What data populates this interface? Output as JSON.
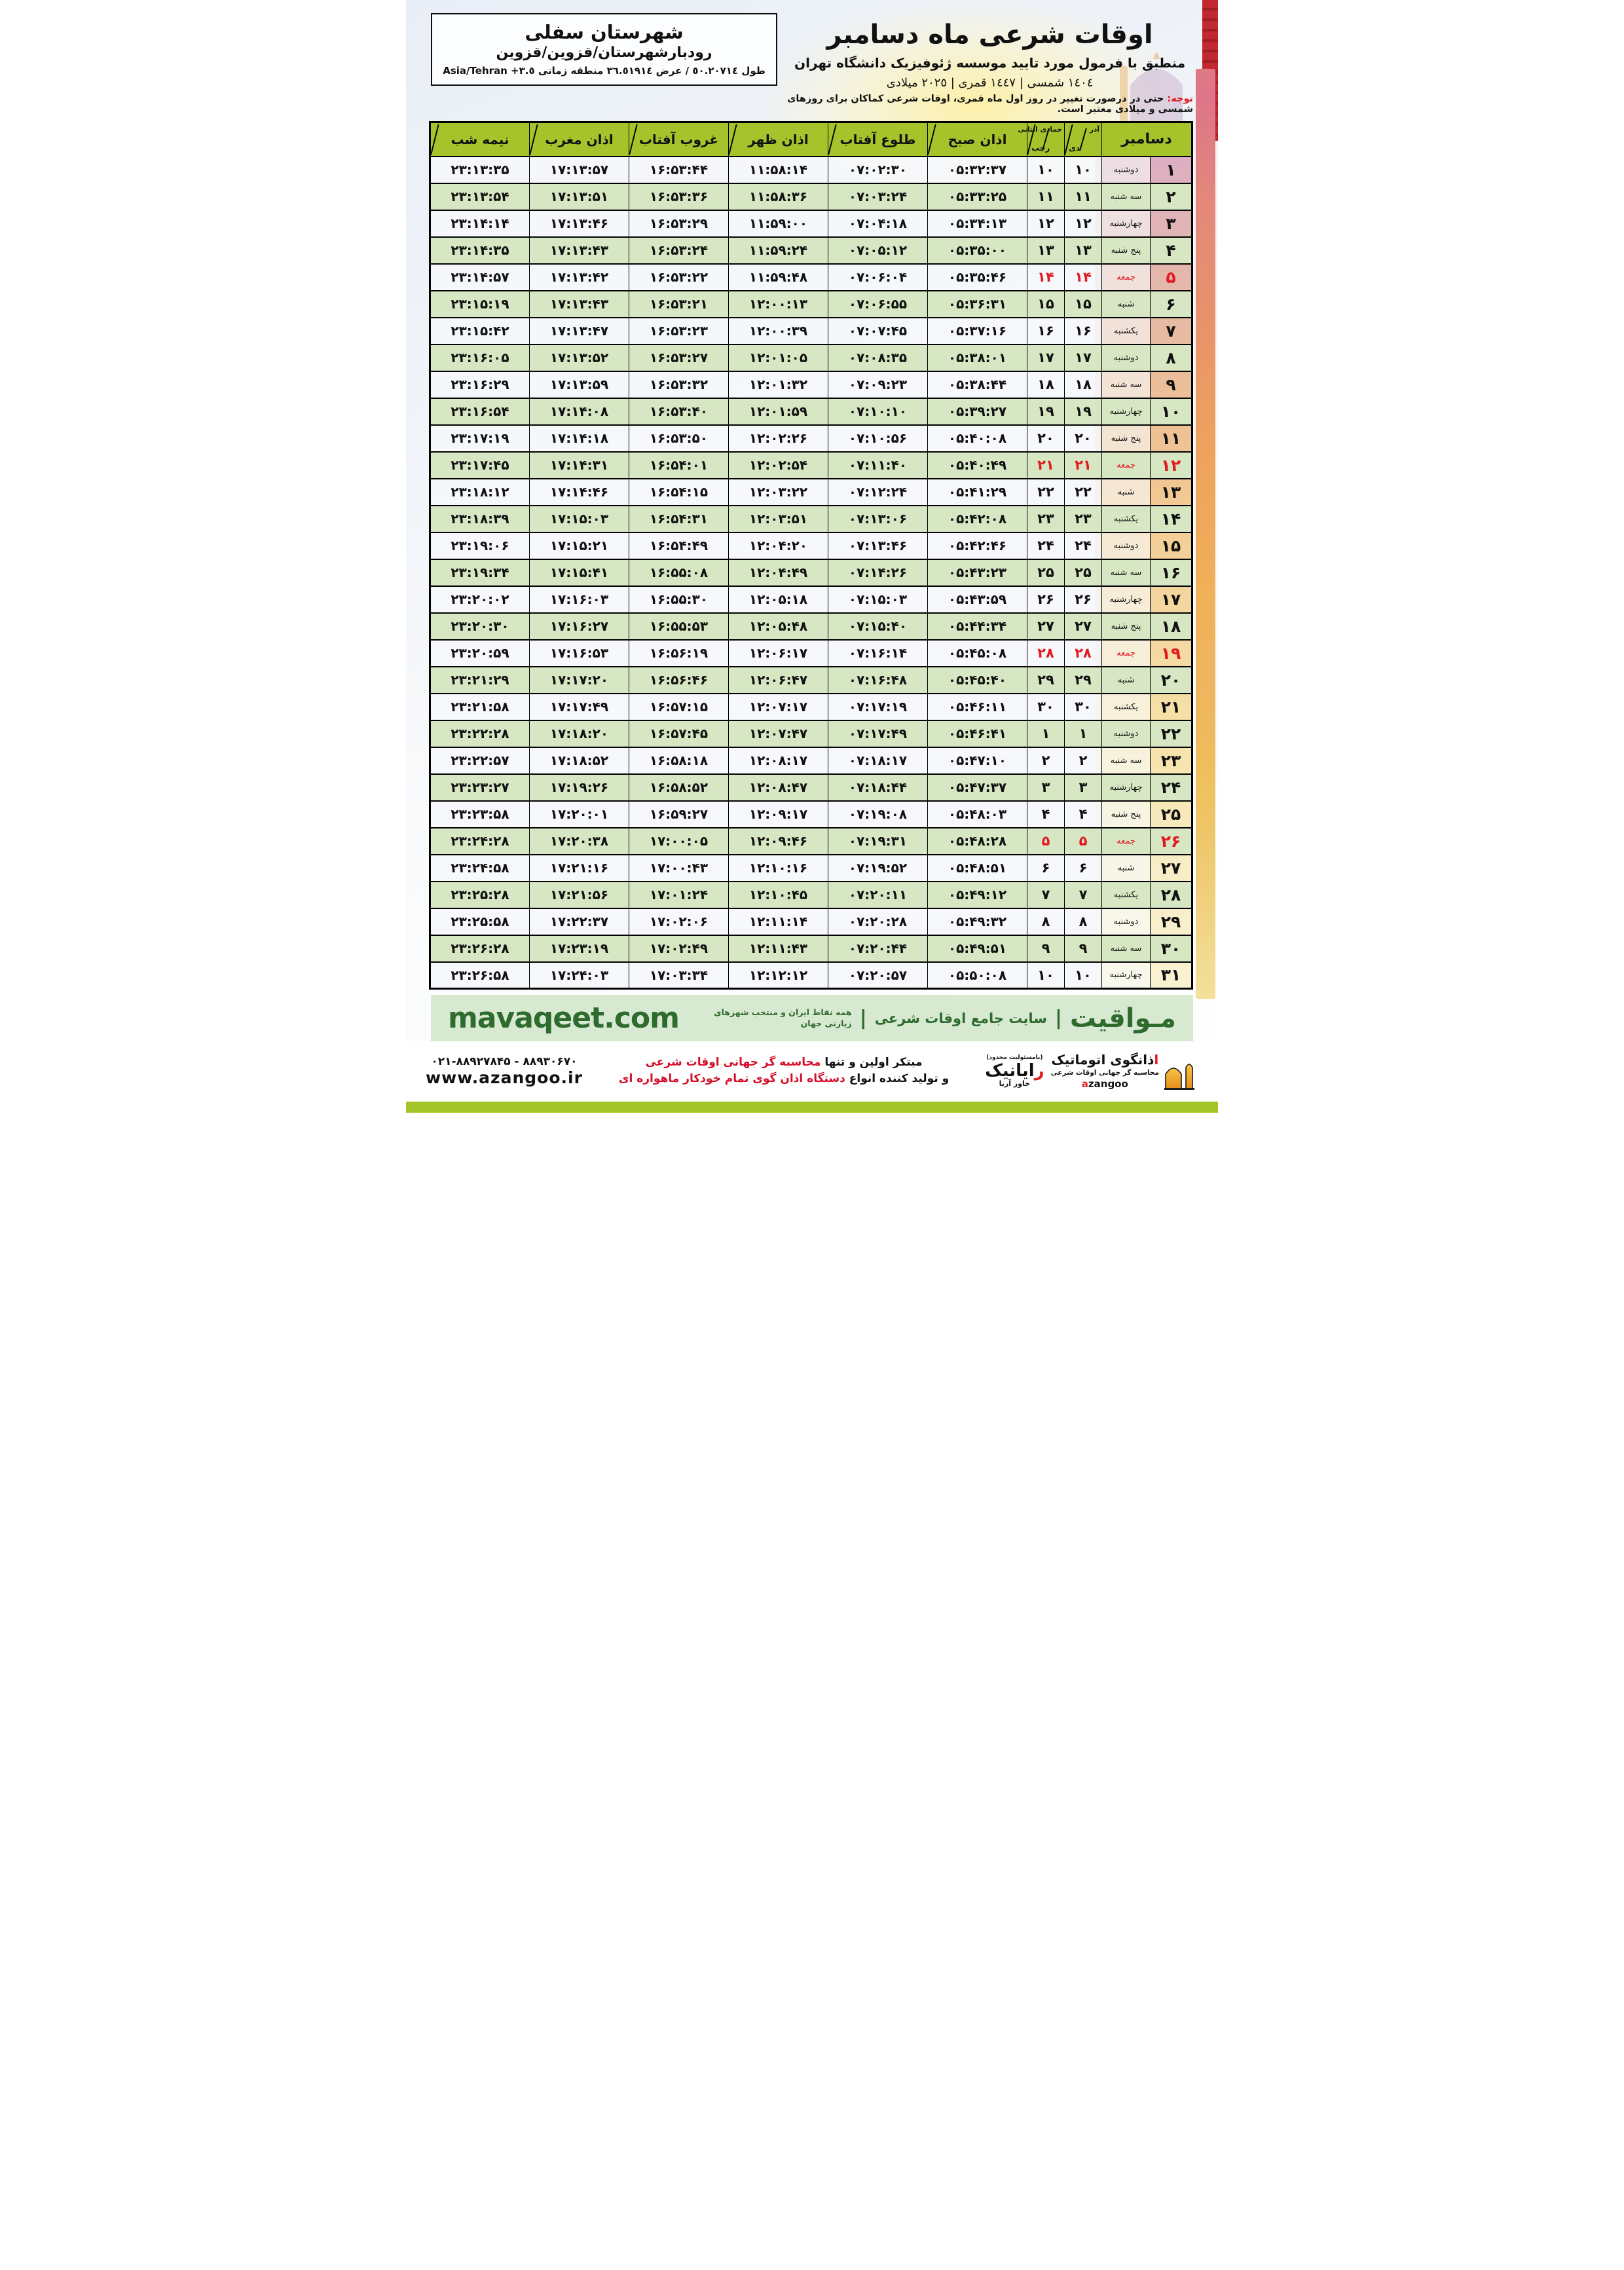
{
  "colors": {
    "header_green": "#a7c32b",
    "row_green": "#d8e7c3",
    "red": "#e01b22",
    "band_bg": "#d8e9d1",
    "band_green": "#2e6b2e",
    "bar_green": "#a4c62a",
    "orange": "#f09d2e"
  },
  "header": {
    "title": "اوقات شرعی ماه دسامبر",
    "subtitle": "منطبق با فرمول مورد تایید موسسه ژئوفیزیک دانشگاه تهران",
    "calendar_line": "١٤٠٤ شمسی | ١٤٤٧ قمری | ٢٠٢٥ میلادی"
  },
  "location_box": {
    "line1": "شهرستان سفلی",
    "line2": "رودبارشهرستان/قزوین/قزوین",
    "coords": "طول ٥٠.٢٠٧١٤ / عرض ٣٦.٥١٩١٤ منطقه زمانی",
    "timezone": "Asia/Tehran +٣.٥"
  },
  "notice": {
    "label": "توجه:",
    "text": "حتی در درصورت تغییر در روز اول ماه قمری، اوقات شرعی کماکان برای روزهای شمسی و میلادی معتبر است."
  },
  "table": {
    "headers": {
      "december": "دسامبر",
      "solar_top": "آذر",
      "solar_bottom": "دی",
      "lunar_top": "جمادی الثانی",
      "lunar_bottom": "رجب",
      "fajr": "اذان صبح",
      "sunrise": "طلوع آفتاب",
      "dhuhr": "اذان ظهر",
      "sunset": "غروب آفتاب",
      "maghrib": "اذان مغرب",
      "midnight": "نیمه شب"
    },
    "rows": [
      {
        "day": "۱",
        "weekday": "دوشنبه",
        "solar": "۱۰",
        "lunar": "۱۰",
        "fajr": "۰۵:۳۲:۳۷",
        "sunrise": "۰۷:۰۲:۳۰",
        "dhuhr": "۱۱:۵۸:۱۴",
        "sunset": "۱۶:۵۳:۴۴",
        "maghrib": "۱۷:۱۳:۵۷",
        "midnight": "۲۳:۱۳:۳۵",
        "friday": false
      },
      {
        "day": "۲",
        "weekday": "سه شنبه",
        "solar": "۱۱",
        "lunar": "۱۱",
        "fajr": "۰۵:۳۳:۲۵",
        "sunrise": "۰۷:۰۳:۲۴",
        "dhuhr": "۱۱:۵۸:۳۶",
        "sunset": "۱۶:۵۳:۳۶",
        "maghrib": "۱۷:۱۳:۵۱",
        "midnight": "۲۳:۱۳:۵۴",
        "friday": false
      },
      {
        "day": "۳",
        "weekday": "چهارشنبه",
        "solar": "۱۲",
        "lunar": "۱۲",
        "fajr": "۰۵:۳۴:۱۳",
        "sunrise": "۰۷:۰۴:۱۸",
        "dhuhr": "۱۱:۵۹:۰۰",
        "sunset": "۱۶:۵۳:۲۹",
        "maghrib": "۱۷:۱۳:۴۶",
        "midnight": "۲۳:۱۴:۱۴",
        "friday": false
      },
      {
        "day": "۴",
        "weekday": "پنج شنبه",
        "solar": "۱۳",
        "lunar": "۱۳",
        "fajr": "۰۵:۳۵:۰۰",
        "sunrise": "۰۷:۰۵:۱۲",
        "dhuhr": "۱۱:۵۹:۲۴",
        "sunset": "۱۶:۵۳:۲۴",
        "maghrib": "۱۷:۱۳:۴۳",
        "midnight": "۲۳:۱۴:۳۵",
        "friday": false
      },
      {
        "day": "۵",
        "weekday": "جمعه",
        "solar": "۱۴",
        "lunar": "۱۴",
        "fajr": "۰۵:۳۵:۴۶",
        "sunrise": "۰۷:۰۶:۰۴",
        "dhuhr": "۱۱:۵۹:۴۸",
        "sunset": "۱۶:۵۳:۲۲",
        "maghrib": "۱۷:۱۳:۴۲",
        "midnight": "۲۳:۱۴:۵۷",
        "friday": true
      },
      {
        "day": "۶",
        "weekday": "شنبه",
        "solar": "۱۵",
        "lunar": "۱۵",
        "fajr": "۰۵:۳۶:۳۱",
        "sunrise": "۰۷:۰۶:۵۵",
        "dhuhr": "۱۲:۰۰:۱۳",
        "sunset": "۱۶:۵۳:۲۱",
        "maghrib": "۱۷:۱۳:۴۳",
        "midnight": "۲۳:۱۵:۱۹",
        "friday": false
      },
      {
        "day": "۷",
        "weekday": "یکشنبه",
        "solar": "۱۶",
        "lunar": "۱۶",
        "fajr": "۰۵:۳۷:۱۶",
        "sunrise": "۰۷:۰۷:۴۵",
        "dhuhr": "۱۲:۰۰:۳۹",
        "sunset": "۱۶:۵۳:۲۳",
        "maghrib": "۱۷:۱۳:۴۷",
        "midnight": "۲۳:۱۵:۴۲",
        "friday": false
      },
      {
        "day": "۸",
        "weekday": "دوشنبه",
        "solar": "۱۷",
        "lunar": "۱۷",
        "fajr": "۰۵:۳۸:۰۱",
        "sunrise": "۰۷:۰۸:۳۵",
        "dhuhr": "۱۲:۰۱:۰۵",
        "sunset": "۱۶:۵۳:۲۷",
        "maghrib": "۱۷:۱۳:۵۲",
        "midnight": "۲۳:۱۶:۰۵",
        "friday": false
      },
      {
        "day": "۹",
        "weekday": "سه شنبه",
        "solar": "۱۸",
        "lunar": "۱۸",
        "fajr": "۰۵:۳۸:۴۴",
        "sunrise": "۰۷:۰۹:۲۳",
        "dhuhr": "۱۲:۰۱:۳۲",
        "sunset": "۱۶:۵۳:۳۲",
        "maghrib": "۱۷:۱۳:۵۹",
        "midnight": "۲۳:۱۶:۲۹",
        "friday": false
      },
      {
        "day": "۱۰",
        "weekday": "چهارشنبه",
        "solar": "۱۹",
        "lunar": "۱۹",
        "fajr": "۰۵:۳۹:۲۷",
        "sunrise": "۰۷:۱۰:۱۰",
        "dhuhr": "۱۲:۰۱:۵۹",
        "sunset": "۱۶:۵۳:۴۰",
        "maghrib": "۱۷:۱۴:۰۸",
        "midnight": "۲۳:۱۶:۵۴",
        "friday": false
      },
      {
        "day": "۱۱",
        "weekday": "پنج شنبه",
        "solar": "۲۰",
        "lunar": "۲۰",
        "fajr": "۰۵:۴۰:۰۸",
        "sunrise": "۰۷:۱۰:۵۶",
        "dhuhr": "۱۲:۰۲:۲۶",
        "sunset": "۱۶:۵۳:۵۰",
        "maghrib": "۱۷:۱۴:۱۸",
        "midnight": "۲۳:۱۷:۱۹",
        "friday": false
      },
      {
        "day": "۱۲",
        "weekday": "جمعه",
        "solar": "۲۱",
        "lunar": "۲۱",
        "fajr": "۰۵:۴۰:۴۹",
        "sunrise": "۰۷:۱۱:۴۰",
        "dhuhr": "۱۲:۰۲:۵۴",
        "sunset": "۱۶:۵۴:۰۱",
        "maghrib": "۱۷:۱۴:۳۱",
        "midnight": "۲۳:۱۷:۴۵",
        "friday": true
      },
      {
        "day": "۱۳",
        "weekday": "شنبه",
        "solar": "۲۲",
        "lunar": "۲۲",
        "fajr": "۰۵:۴۱:۲۹",
        "sunrise": "۰۷:۱۲:۲۴",
        "dhuhr": "۱۲:۰۳:۲۲",
        "sunset": "۱۶:۵۴:۱۵",
        "maghrib": "۱۷:۱۴:۴۶",
        "midnight": "۲۳:۱۸:۱۲",
        "friday": false
      },
      {
        "day": "۱۴",
        "weekday": "یکشنبه",
        "solar": "۲۳",
        "lunar": "۲۳",
        "fajr": "۰۵:۴۲:۰۸",
        "sunrise": "۰۷:۱۳:۰۶",
        "dhuhr": "۱۲:۰۳:۵۱",
        "sunset": "۱۶:۵۴:۳۱",
        "maghrib": "۱۷:۱۵:۰۳",
        "midnight": "۲۳:۱۸:۳۹",
        "friday": false
      },
      {
        "day": "۱۵",
        "weekday": "دوشنبه",
        "solar": "۲۴",
        "lunar": "۲۴",
        "fajr": "۰۵:۴۲:۴۶",
        "sunrise": "۰۷:۱۳:۴۶",
        "dhuhr": "۱۲:۰۴:۲۰",
        "sunset": "۱۶:۵۴:۴۹",
        "maghrib": "۱۷:۱۵:۲۱",
        "midnight": "۲۳:۱۹:۰۶",
        "friday": false
      },
      {
        "day": "۱۶",
        "weekday": "سه شنبه",
        "solar": "۲۵",
        "lunar": "۲۵",
        "fajr": "۰۵:۴۳:۲۳",
        "sunrise": "۰۷:۱۴:۲۶",
        "dhuhr": "۱۲:۰۴:۴۹",
        "sunset": "۱۶:۵۵:۰۸",
        "maghrib": "۱۷:۱۵:۴۱",
        "midnight": "۲۳:۱۹:۳۴",
        "friday": false
      },
      {
        "day": "۱۷",
        "weekday": "چهارشنبه",
        "solar": "۲۶",
        "lunar": "۲۶",
        "fajr": "۰۵:۴۳:۵۹",
        "sunrise": "۰۷:۱۵:۰۳",
        "dhuhr": "۱۲:۰۵:۱۸",
        "sunset": "۱۶:۵۵:۳۰",
        "maghrib": "۱۷:۱۶:۰۳",
        "midnight": "۲۳:۲۰:۰۲",
        "friday": false
      },
      {
        "day": "۱۸",
        "weekday": "پنج شنبه",
        "solar": "۲۷",
        "lunar": "۲۷",
        "fajr": "۰۵:۴۴:۳۴",
        "sunrise": "۰۷:۱۵:۴۰",
        "dhuhr": "۱۲:۰۵:۴۸",
        "sunset": "۱۶:۵۵:۵۳",
        "maghrib": "۱۷:۱۶:۲۷",
        "midnight": "۲۳:۲۰:۳۰",
        "friday": false
      },
      {
        "day": "۱۹",
        "weekday": "جمعه",
        "solar": "۲۸",
        "lunar": "۲۸",
        "fajr": "۰۵:۴۵:۰۸",
        "sunrise": "۰۷:۱۶:۱۴",
        "dhuhr": "۱۲:۰۶:۱۷",
        "sunset": "۱۶:۵۶:۱۹",
        "maghrib": "۱۷:۱۶:۵۳",
        "midnight": "۲۳:۲۰:۵۹",
        "friday": true
      },
      {
        "day": "۲۰",
        "weekday": "شنبه",
        "solar": "۲۹",
        "lunar": "۲۹",
        "fajr": "۰۵:۴۵:۴۰",
        "sunrise": "۰۷:۱۶:۴۸",
        "dhuhr": "۱۲:۰۶:۴۷",
        "sunset": "۱۶:۵۶:۴۶",
        "maghrib": "۱۷:۱۷:۲۰",
        "midnight": "۲۳:۲۱:۲۹",
        "friday": false
      },
      {
        "day": "۲۱",
        "weekday": "یکشنبه",
        "solar": "۳۰",
        "lunar": "۳۰",
        "fajr": "۰۵:۴۶:۱۱",
        "sunrise": "۰۷:۱۷:۱۹",
        "dhuhr": "۱۲:۰۷:۱۷",
        "sunset": "۱۶:۵۷:۱۵",
        "maghrib": "۱۷:۱۷:۴۹",
        "midnight": "۲۳:۲۱:۵۸",
        "friday": false
      },
      {
        "day": "۲۲",
        "weekday": "دوشنبه",
        "solar": "۱",
        "lunar": "۱",
        "fajr": "۰۵:۴۶:۴۱",
        "sunrise": "۰۷:۱۷:۴۹",
        "dhuhr": "۱۲:۰۷:۴۷",
        "sunset": "۱۶:۵۷:۴۵",
        "maghrib": "۱۷:۱۸:۲۰",
        "midnight": "۲۳:۲۲:۲۸",
        "friday": false
      },
      {
        "day": "۲۳",
        "weekday": "سه شنبه",
        "solar": "۲",
        "lunar": "۲",
        "fajr": "۰۵:۴۷:۱۰",
        "sunrise": "۰۷:۱۸:۱۷",
        "dhuhr": "۱۲:۰۸:۱۷",
        "sunset": "۱۶:۵۸:۱۸",
        "maghrib": "۱۷:۱۸:۵۲",
        "midnight": "۲۳:۲۲:۵۷",
        "friday": false
      },
      {
        "day": "۲۴",
        "weekday": "چهارشنبه",
        "solar": "۳",
        "lunar": "۳",
        "fajr": "۰۵:۴۷:۳۷",
        "sunrise": "۰۷:۱۸:۴۴",
        "dhuhr": "۱۲:۰۸:۴۷",
        "sunset": "۱۶:۵۸:۵۲",
        "maghrib": "۱۷:۱۹:۲۶",
        "midnight": "۲۳:۲۳:۲۷",
        "friday": false
      },
      {
        "day": "۲۵",
        "weekday": "پنج شنبه",
        "solar": "۴",
        "lunar": "۴",
        "fajr": "۰۵:۴۸:۰۳",
        "sunrise": "۰۷:۱۹:۰۸",
        "dhuhr": "۱۲:۰۹:۱۷",
        "sunset": "۱۶:۵۹:۲۷",
        "maghrib": "۱۷:۲۰:۰۱",
        "midnight": "۲۳:۲۳:۵۸",
        "friday": false
      },
      {
        "day": "۲۶",
        "weekday": "جمعه",
        "solar": "۵",
        "lunar": "۵",
        "fajr": "۰۵:۴۸:۲۸",
        "sunrise": "۰۷:۱۹:۳۱",
        "dhuhr": "۱۲:۰۹:۴۶",
        "sunset": "۱۷:۰۰:۰۵",
        "maghrib": "۱۷:۲۰:۳۸",
        "midnight": "۲۳:۲۴:۲۸",
        "friday": true
      },
      {
        "day": "۲۷",
        "weekday": "شنبه",
        "solar": "۶",
        "lunar": "۶",
        "fajr": "۰۵:۴۸:۵۱",
        "sunrise": "۰۷:۱۹:۵۲",
        "dhuhr": "۱۲:۱۰:۱۶",
        "sunset": "۱۷:۰۰:۴۳",
        "maghrib": "۱۷:۲۱:۱۶",
        "midnight": "۲۳:۲۴:۵۸",
        "friday": false
      },
      {
        "day": "۲۸",
        "weekday": "یکشنبه",
        "solar": "۷",
        "lunar": "۷",
        "fajr": "۰۵:۴۹:۱۲",
        "sunrise": "۰۷:۲۰:۱۱",
        "dhuhr": "۱۲:۱۰:۴۵",
        "sunset": "۱۷:۰۱:۲۴",
        "maghrib": "۱۷:۲۱:۵۶",
        "midnight": "۲۳:۲۵:۲۸",
        "friday": false
      },
      {
        "day": "۲۹",
        "weekday": "دوشنبه",
        "solar": "۸",
        "lunar": "۸",
        "fajr": "۰۵:۴۹:۳۲",
        "sunrise": "۰۷:۲۰:۲۸",
        "dhuhr": "۱۲:۱۱:۱۴",
        "sunset": "۱۷:۰۲:۰۶",
        "maghrib": "۱۷:۲۲:۳۷",
        "midnight": "۲۳:۲۵:۵۸",
        "friday": false
      },
      {
        "day": "۳۰",
        "weekday": "سه شنبه",
        "solar": "۹",
        "lunar": "۹",
        "fajr": "۰۵:۴۹:۵۱",
        "sunrise": "۰۷:۲۰:۴۴",
        "dhuhr": "۱۲:۱۱:۴۳",
        "sunset": "۱۷:۰۲:۴۹",
        "maghrib": "۱۷:۲۳:۱۹",
        "midnight": "۲۳:۲۶:۲۸",
        "friday": false
      },
      {
        "day": "۳۱",
        "weekday": "چهارشنبه",
        "solar": "۱۰",
        "lunar": "۱۰",
        "fajr": "۰۵:۵۰:۰۸",
        "sunrise": "۰۷:۲۰:۵۷",
        "dhuhr": "۱۲:۱۲:۱۲",
        "sunset": "۱۷:۰۳:۳۴",
        "maghrib": "۱۷:۲۴:۰۳",
        "midnight": "۲۳:۲۶:۵۸",
        "friday": false
      }
    ]
  },
  "mavaqeet_band": {
    "brand": "مـواقیت",
    "separator": "|",
    "tagline1": "سایت جامع اوقات شرعی",
    "tagline2": "همه نقاط ایران و منتخب شهرهای زیارتی جهان",
    "domain": "mavaqeet.com"
  },
  "footer": {
    "azangoo_title_first": "ا",
    "azangoo_title_rest": "ذانگوی اتوماتیک",
    "azangoo_sub": "محاسبه گر جهانی اوقات شرعی",
    "azangoo_latin_first": "a",
    "azangoo_latin_rest": "zangoo",
    "rayanik_top": "(بامسئولیت محدود)",
    "rayanik_first": "ر",
    "rayanik_rest": "ایانیک",
    "rayanik_sub": "خاور آریا",
    "line1_black": "مبتکر اولین و تنها ",
    "line1_red": "محاسبه گر جهانی اوقات شرعی",
    "line2_black": "و تولید کننده انواع ",
    "line2_red": "دستگاه اذان گوی تمام خودکار ماهواره ای",
    "phones": "۰۲۱-۸۸۹۲۷۸۴۵ - ۸۸۹۳۰۶۷۰",
    "website": "www.azangoo.ir"
  }
}
